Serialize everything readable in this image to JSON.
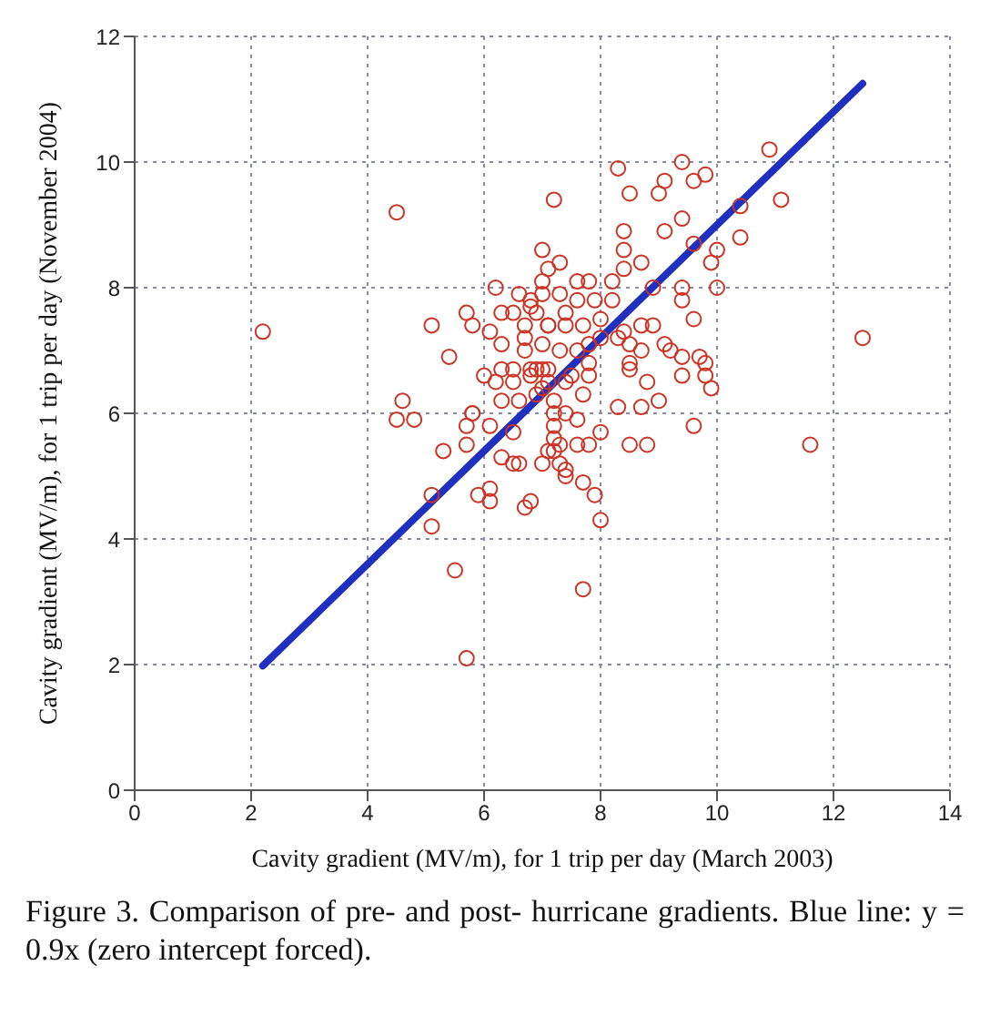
{
  "chart_data": {
    "type": "scatter",
    "xlabel": "Cavity gradient (MV/m), for 1 trip per day (March 2003)",
    "ylabel": "Cavity gradient (MV/m), for 1 trip per day (November 2004)",
    "annotations": [
      "Figure 3. Comparison of pre- and post- hurricane gradients. Blue line: y = 0.9x (zero intercept forced)."
    ],
    "xlim": [
      0,
      14
    ],
    "xticks": [
      0,
      2,
      4,
      6,
      8,
      10,
      12,
      14
    ],
    "ylim": [
      0,
      12
    ],
    "yticks": [
      0,
      2,
      4,
      6,
      8,
      10,
      12
    ],
    "grid": true,
    "series": [
      {
        "marker": "circle",
        "color": "#cc3322",
        "x": [
          2.2,
          4.5,
          10.9,
          12.5,
          11.6,
          5.7,
          5.5,
          7.7,
          8.0,
          8.3,
          9.4,
          9.8,
          9.1,
          9.0,
          9.6,
          8.5,
          7.2,
          10.4,
          11.1,
          9.4,
          8.4,
          9.1,
          10.4,
          9.6,
          10.0,
          7.0,
          8.4,
          9.9,
          8.7,
          7.3,
          8.4,
          7.1,
          7.8,
          7.6,
          10.0,
          9.4,
          8.9,
          8.2,
          7.3,
          7.0,
          9.4,
          7.6,
          7.9,
          8.2,
          9.6,
          6.9,
          7.4,
          8.0,
          8.7,
          8.9,
          8.4,
          7.1,
          7.7,
          6.7,
          8.0,
          8.3,
          7.8,
          9.1,
          9.2,
          8.5,
          7.3,
          7.6,
          8.7,
          9.7,
          9.4,
          9.8,
          8.5,
          7.8,
          6.9,
          9.4,
          9.8,
          7.1,
          7.5,
          8.5,
          7.8,
          8.8,
          9.9,
          7.4,
          7.0,
          9.0,
          7.7,
          8.3,
          8.7,
          7.2,
          7.4,
          7.6,
          9.6,
          8.0,
          7.2,
          8.5,
          8.8,
          7.3,
          7.6,
          7.8,
          7.2,
          7.0,
          7.4,
          6.2,
          6.6,
          7.0,
          6.8,
          5.7,
          6.3,
          6.5,
          6.8,
          5.1,
          5.8,
          6.1,
          6.7,
          7.1,
          7.4,
          6.3,
          6.7,
          7.0,
          5.4,
          6.0,
          6.3,
          6.5,
          6.8,
          7.0,
          6.2,
          6.5,
          6.8,
          7.1,
          6.3,
          6.6,
          6.9,
          7.2,
          4.6,
          4.5,
          4.8,
          5.8,
          5.8,
          5.7,
          6.1,
          6.5,
          7.2,
          5.3,
          5.7,
          6.3,
          6.6,
          7.3,
          6.5,
          5.1,
          5.9,
          6.1,
          6.1,
          6.8,
          6.7,
          5.1,
          7.1,
          7.4,
          7.7,
          7.9
        ],
        "values": [
          7.3,
          9.2,
          10.2,
          7.2,
          5.5,
          2.1,
          3.5,
          3.2,
          4.3,
          9.9,
          10.0,
          9.8,
          9.7,
          9.5,
          9.7,
          9.5,
          9.4,
          9.3,
          9.4,
          9.1,
          8.9,
          8.9,
          8.8,
          8.7,
          8.6,
          8.6,
          8.6,
          8.4,
          8.4,
          8.4,
          8.3,
          8.3,
          8.1,
          8.1,
          8.0,
          8.0,
          8.0,
          8.1,
          7.9,
          7.9,
          7.8,
          7.8,
          7.8,
          7.8,
          7.5,
          7.6,
          7.6,
          7.5,
          7.4,
          7.4,
          7.3,
          7.4,
          7.4,
          7.2,
          7.2,
          7.2,
          7.1,
          7.1,
          7.0,
          7.1,
          7.0,
          7.0,
          7.0,
          6.9,
          6.9,
          6.8,
          6.8,
          6.8,
          6.7,
          6.6,
          6.6,
          6.7,
          6.6,
          6.7,
          6.6,
          6.5,
          6.4,
          6.5,
          6.4,
          6.2,
          6.3,
          6.1,
          6.1,
          6.0,
          6.0,
          5.9,
          5.8,
          5.7,
          5.6,
          5.5,
          5.5,
          5.5,
          5.5,
          5.5,
          5.4,
          5.2,
          5.1,
          8.0,
          7.9,
          8.1,
          7.8,
          7.6,
          7.6,
          7.6,
          7.7,
          7.4,
          7.4,
          7.3,
          7.4,
          7.4,
          7.4,
          7.1,
          7.0,
          7.1,
          6.9,
          6.6,
          6.7,
          6.7,
          6.7,
          6.7,
          6.5,
          6.5,
          6.6,
          6.5,
          6.2,
          6.2,
          6.3,
          6.2,
          6.2,
          5.9,
          5.9,
          6.0,
          6.0,
          5.8,
          5.8,
          5.7,
          5.8,
          5.4,
          5.5,
          5.3,
          5.2,
          5.2,
          5.2,
          4.7,
          4.7,
          4.8,
          4.6,
          4.6,
          4.5,
          4.2,
          5.4,
          5.0,
          4.9,
          4.7
        ]
      },
      {
        "type": "line",
        "color": "#1f2fbf",
        "x": [
          2.2,
          12.5
        ],
        "values": [
          1.98,
          11.25
        ]
      }
    ]
  }
}
